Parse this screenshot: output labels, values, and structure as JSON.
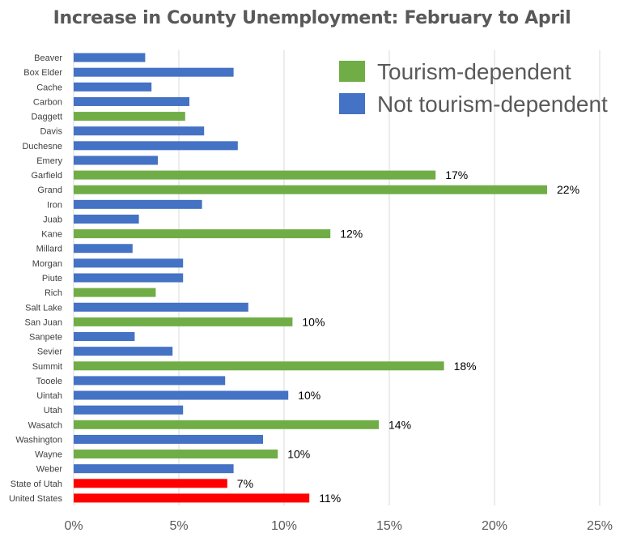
{
  "chart_data": {
    "type": "bar",
    "orientation": "horizontal",
    "title": "Increase in County Unemployment: February to April",
    "xlabel": "",
    "ylabel": "",
    "xlim": [
      0,
      25
    ],
    "x_ticks": [
      "0%",
      "5%",
      "10%",
      "15%",
      "20%",
      "25%"
    ],
    "grid": "vertical",
    "legend_position": "top-right",
    "colors": {
      "tourism": "#70ad47",
      "not_tourism": "#4472c4",
      "aggregate": "#ff0000"
    },
    "legend": [
      {
        "label": "Tourism-dependent",
        "group": "tourism"
      },
      {
        "label": "Not tourism-dependent",
        "group": "not_tourism"
      }
    ],
    "categories": [
      "Beaver",
      "Box Elder",
      "Cache",
      "Carbon",
      "Daggett",
      "Davis",
      "Duchesne",
      "Emery",
      "Garfield",
      "Grand",
      "Iron",
      "Juab",
      "Kane",
      "Millard",
      "Morgan",
      "Piute",
      "Rich",
      "Salt Lake",
      "San Juan",
      "Sanpete",
      "Sevier",
      "Summit",
      "Tooele",
      "Uintah",
      "Utah",
      "Wasatch",
      "Washington",
      "Wayne",
      "Weber",
      "State of Utah",
      "United States"
    ],
    "values": [
      3.4,
      7.6,
      3.7,
      5.5,
      5.3,
      6.2,
      7.8,
      4.0,
      17.2,
      22.5,
      6.1,
      3.1,
      12.2,
      2.8,
      5.2,
      5.2,
      3.9,
      8.3,
      10.4,
      2.9,
      4.7,
      17.6,
      7.2,
      10.2,
      5.2,
      14.5,
      9.0,
      9.7,
      7.6,
      7.3,
      11.2
    ],
    "groups": [
      "not_tourism",
      "not_tourism",
      "not_tourism",
      "not_tourism",
      "tourism",
      "not_tourism",
      "not_tourism",
      "not_tourism",
      "tourism",
      "tourism",
      "not_tourism",
      "not_tourism",
      "tourism",
      "not_tourism",
      "not_tourism",
      "not_tourism",
      "tourism",
      "not_tourism",
      "tourism",
      "not_tourism",
      "not_tourism",
      "tourism",
      "not_tourism",
      "not_tourism",
      "not_tourism",
      "tourism",
      "not_tourism",
      "tourism",
      "not_tourism",
      "aggregate",
      "aggregate"
    ],
    "data_labels": [
      "",
      "",
      "",
      "",
      "",
      "",
      "",
      "",
      "17%",
      "22%",
      "",
      "",
      "12%",
      "",
      "",
      "",
      "",
      "",
      "10%",
      "",
      "",
      "18%",
      "",
      "10%",
      "",
      "14%",
      "",
      "10%",
      "",
      "7%",
      "11%"
    ]
  }
}
